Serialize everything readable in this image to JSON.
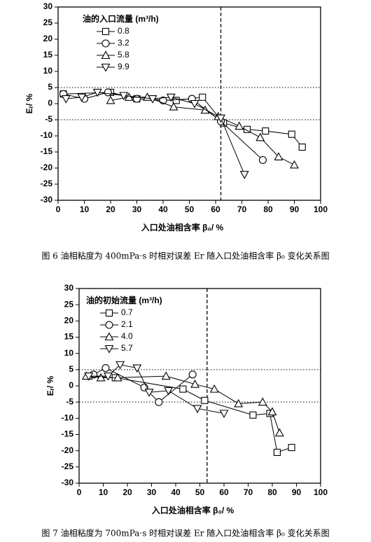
{
  "chart_data": [
    {
      "type": "line",
      "caption": "图 6 油相粘度为 400mPa·s 时相对误差 Er 随入口处油相含率 β₀ 变化关系图",
      "xlabel": "入口处油相含率 β₀/ %",
      "ylabel": "Eᵣ/ %",
      "legend_title": "油的入口流量 (m³/h)",
      "xlim": [
        0,
        100
      ],
      "xticks": [
        0,
        10,
        20,
        30,
        40,
        50,
        60,
        70,
        80,
        90,
        100
      ],
      "ylim": [
        -30,
        30
      ],
      "yticks": [
        -30,
        -25,
        -20,
        -15,
        -10,
        -5,
        0,
        5,
        10,
        15,
        20,
        25,
        30
      ],
      "vline": 62,
      "hlines": [
        5,
        -5
      ],
      "series": [
        {
          "name": "0.8",
          "color": "#000000",
          "marker": "square",
          "x": [
            2,
            20,
            30,
            45,
            55,
            63,
            72,
            79,
            89,
            93
          ],
          "values": [
            3,
            3.5,
            1.5,
            1,
            2,
            -6,
            -8,
            -8.5,
            -9.5,
            -13.5
          ]
        },
        {
          "name": "3.2",
          "color": "#000000",
          "marker": "circle",
          "x": [
            2,
            10,
            19,
            30,
            40,
            51,
            62,
            78
          ],
          "values": [
            3,
            1.5,
            3.5,
            1.5,
            1,
            1.5,
            -5.5,
            -17.5
          ]
        },
        {
          "name": "5.8",
          "color": "#000000",
          "marker": "triangle-up",
          "x": [
            20,
            27,
            34,
            44,
            56,
            61,
            69,
            77,
            84,
            90
          ],
          "values": [
            1,
            2,
            2,
            -1,
            -2,
            -4,
            -7,
            -10.5,
            -16.5,
            -19
          ]
        },
        {
          "name": "9.9",
          "color": "#000000",
          "marker": "triangle-down",
          "x": [
            3,
            9,
            15,
            25,
            36,
            43,
            52,
            62,
            71
          ],
          "values": [
            1.5,
            2,
            3.5,
            2.5,
            1.5,
            2,
            0,
            -4.5,
            -22
          ]
        }
      ]
    },
    {
      "type": "line",
      "caption": "图 7 油相粘度为 700mPa·s 时相对误差 Er 随入口处油相含率 β₀ 变化关系图",
      "xlabel": "入口处油相含率 β₀/ %",
      "ylabel": "Eᵣ/ %",
      "legend_title": "油的初始流量 (m³/h)",
      "xlim": [
        0,
        100
      ],
      "xticks": [
        0,
        10,
        20,
        30,
        40,
        50,
        60,
        70,
        80,
        90,
        100
      ],
      "ylim": [
        -30,
        30
      ],
      "yticks": [
        -30,
        -25,
        -20,
        -15,
        -10,
        -5,
        0,
        5,
        10,
        15,
        20,
        25,
        30
      ],
      "vline": 53,
      "hlines": [
        5,
        -5
      ],
      "series": [
        {
          "name": "0.7",
          "color": "#000000",
          "marker": "square",
          "x": [
            4,
            15,
            43,
            52,
            72,
            79,
            82,
            88
          ],
          "values": [
            3,
            2.5,
            -1,
            -4.5,
            -9,
            -8.5,
            -20.5,
            -19
          ]
        },
        {
          "name": "2.1",
          "color": "#000000",
          "marker": "circle",
          "x": [
            6,
            11,
            27,
            33,
            47
          ],
          "values": [
            3.5,
            5.5,
            -0.5,
            -5,
            3.5
          ]
        },
        {
          "name": "4.0",
          "color": "#000000",
          "marker": "triangle-up",
          "x": [
            3,
            9,
            16,
            36,
            48,
            56,
            66,
            76,
            80,
            83
          ],
          "values": [
            3,
            2.5,
            2.5,
            3,
            0.5,
            -1,
            -5.5,
            -5,
            -8,
            -14.5
          ]
        },
        {
          "name": "5.7",
          "color": "#000000",
          "marker": "triangle-down",
          "x": [
            4,
            12,
            17,
            24,
            29,
            37,
            49,
            60
          ],
          "values": [
            3,
            3,
            6.5,
            5.5,
            -2,
            -1.5,
            -7,
            -8.5
          ]
        }
      ]
    }
  ]
}
